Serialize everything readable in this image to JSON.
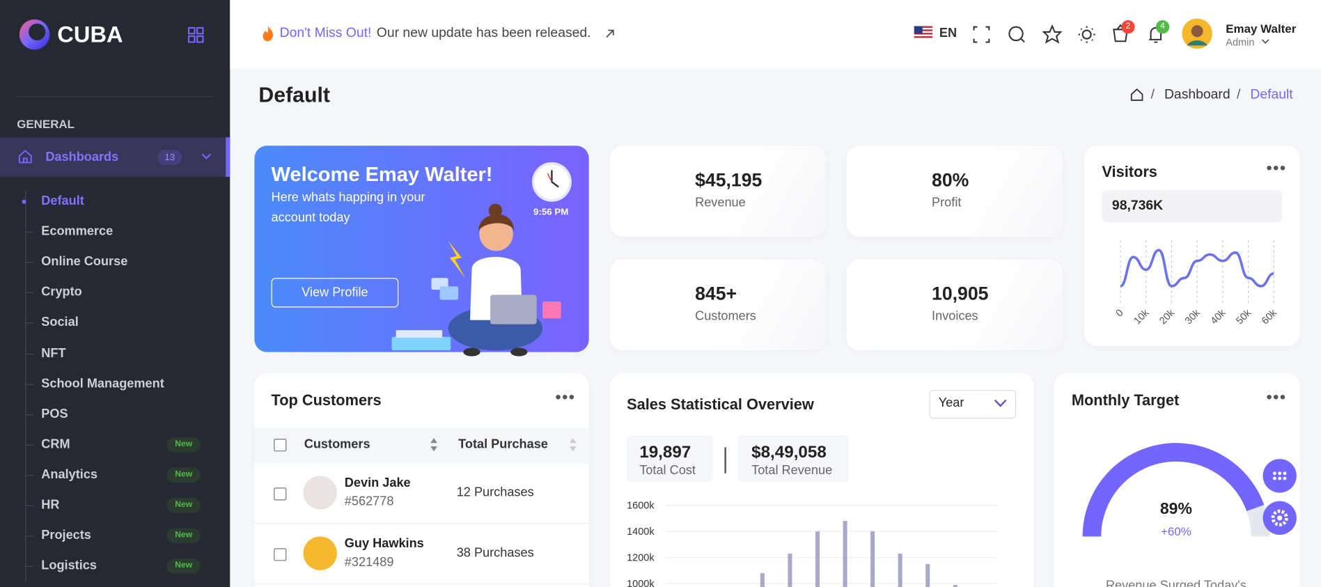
{
  "sidebar": {
    "brand": "CUBA",
    "section": "GENERAL",
    "active": {
      "label": "Dashboards",
      "badge": "13"
    },
    "items": [
      {
        "label": "Default",
        "selected": true
      },
      {
        "label": "Ecommerce"
      },
      {
        "label": "Online Course"
      },
      {
        "label": "Crypto"
      },
      {
        "label": "Social"
      },
      {
        "label": "NFT"
      },
      {
        "label": "School Management"
      },
      {
        "label": "POS"
      },
      {
        "label": "CRM",
        "badge": "New"
      },
      {
        "label": "Analytics",
        "badge": "New"
      },
      {
        "label": "HR",
        "badge": "New"
      },
      {
        "label": "Projects",
        "badge": "New"
      },
      {
        "label": "Logistics",
        "badge": "New"
      }
    ]
  },
  "header": {
    "promo_highlight": "Don't Miss Out!",
    "promo_text": "Our new update has been released.",
    "language": "EN",
    "cart_count": "2",
    "notification_count": "4",
    "user_name": "Emay Walter",
    "user_role": "Admin"
  },
  "page": {
    "title": "Default",
    "breadcrumb": [
      "Dashboard",
      "Default"
    ]
  },
  "welcome": {
    "title": "Welcome Emay Walter!",
    "text": "Here whats happing in your account today",
    "time": "9:56 PM",
    "button": "View Profile"
  },
  "stats": [
    {
      "value": "$45,195",
      "label": "Revenue",
      "color": "#8a8a8a"
    },
    {
      "value": "80%",
      "label": "Profit",
      "color": "#ffaa05"
    },
    {
      "value": "845+",
      "label": "Customers",
      "color": "#54ba4a"
    },
    {
      "value": "10,905",
      "label": "Invoices",
      "color": "#7366ff"
    }
  ],
  "visitors": {
    "title": "Visitors",
    "total": "98,736K",
    "chart_data": {
      "type": "line",
      "x": [
        0,
        5000,
        10000,
        15000,
        20000,
        25000,
        30000,
        35000,
        40000,
        45000,
        50000,
        55000,
        60000
      ],
      "values": [
        27,
        73,
        53,
        84,
        27,
        40,
        67,
        77,
        67,
        80,
        40,
        27,
        47
      ],
      "color": "#6a74e8",
      "xlim": [
        0,
        60000
      ],
      "xticks": [
        0,
        {
          "value": 10000,
          "label": "10k"
        },
        {
          "value": 20000,
          "label": "20k"
        },
        {
          "value": 30000,
          "label": "30k"
        },
        {
          "value": 40000,
          "label": "40k"
        },
        {
          "value": 50000,
          "label": "50k"
        },
        {
          "value": 60000,
          "label": "60k"
        }
      ],
      "ylim": [
        0,
        100
      ]
    }
  },
  "top_customers": {
    "title": "Top Customers",
    "columns": [
      "Customers",
      "Total Purchase"
    ],
    "rows": [
      {
        "name": "Devin Jake",
        "id": "#562778",
        "purchases": "12 Purchases"
      },
      {
        "name": "Guy Hawkins",
        "id": "#321489",
        "purchases": "38 Purchases"
      }
    ]
  },
  "sales": {
    "title": "Sales Statistical Overview",
    "period": "Year",
    "summary": [
      {
        "value": "19,897",
        "label": "Total Cost"
      },
      {
        "value": "$8,49,058",
        "label": "Total Revenue"
      }
    ],
    "chart_data": {
      "type": "bar",
      "categories": [
        null,
        null,
        null,
        null,
        null,
        null,
        null,
        null
      ],
      "values": [
        1080000,
        1230000,
        1400000,
        1480000,
        1400000,
        1230000,
        1150000,
        990000
      ],
      "color": "#a9a9cb",
      "ylim": [
        800000,
        1600000
      ],
      "yticks": [
        {
          "value": 1600000,
          "label": "1600k"
        },
        {
          "value": 1400000,
          "label": "1400k"
        },
        {
          "value": 1200000,
          "label": "1200k"
        },
        {
          "value": 1000000,
          "label": "1000k"
        }
      ],
      "grid": true
    }
  },
  "monthly_target": {
    "title": "Monthly Target",
    "gauge": {
      "value": 89,
      "value_label": "89%",
      "change": "+60%",
      "color": "#7366ff"
    },
    "caption": "Revenue Surged Today's"
  }
}
